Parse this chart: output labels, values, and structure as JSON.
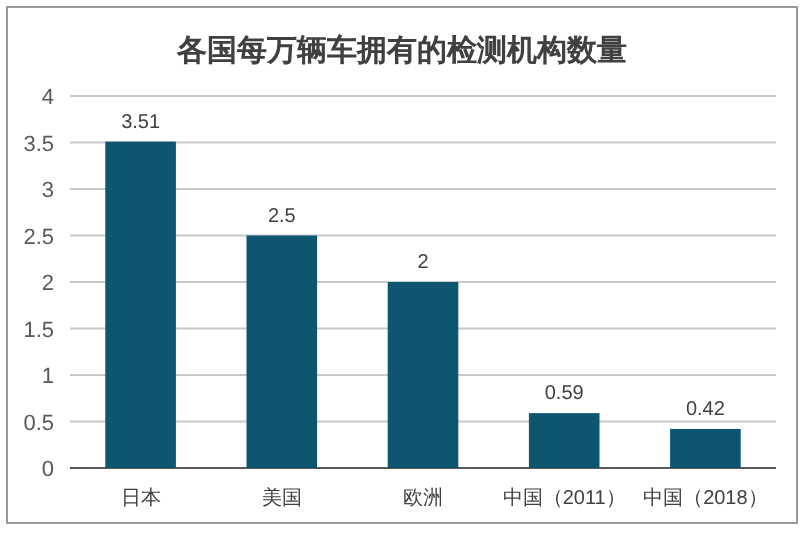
{
  "chart_data": {
    "type": "bar",
    "title": "各国每万辆车拥有的检测机构数量",
    "categories": [
      "日本",
      "美国",
      "欧洲",
      "中国（2011）",
      "中国（2018）"
    ],
    "values": [
      3.51,
      2.5,
      2,
      0.59,
      0.42
    ],
    "color": "#0e5570",
    "ylim": [
      0,
      4
    ],
    "yticks": [
      0,
      0.5,
      1,
      1.5,
      2,
      2.5,
      3,
      3.5,
      4
    ],
    "grid": "y",
    "data_labels": true
  }
}
